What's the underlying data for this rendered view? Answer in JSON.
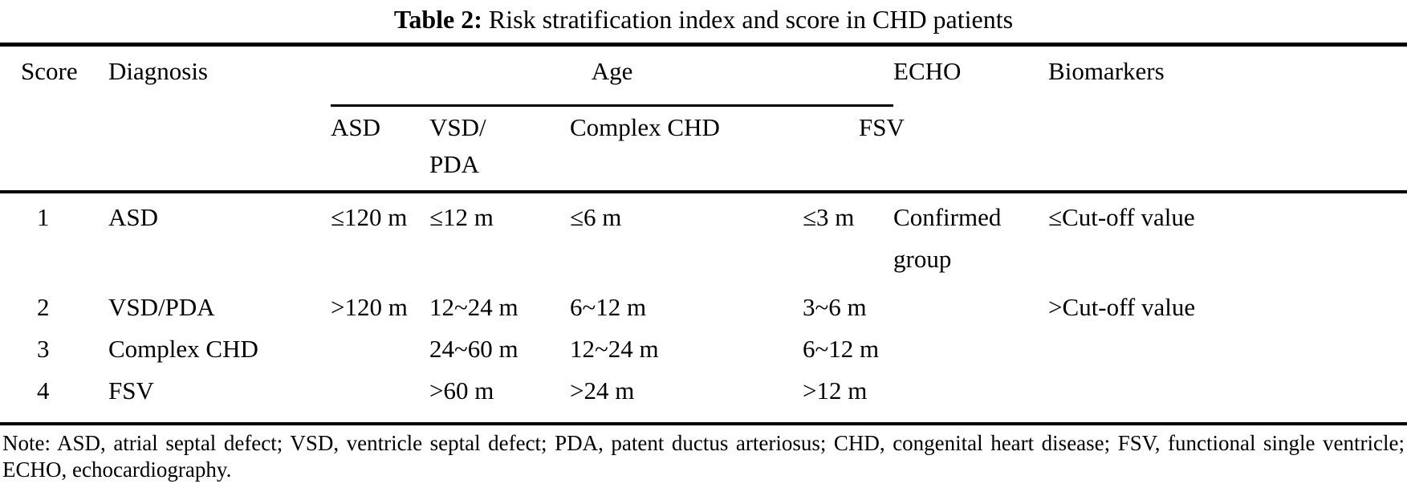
{
  "colors": {
    "text": "#000000",
    "background": "#ffffff",
    "rule": "#000000"
  },
  "caption": {
    "label": "Table 2:",
    "text": " Risk stratification index and score in CHD patients"
  },
  "table": {
    "header": {
      "score": "Score",
      "diagnosis": "Diagnosis",
      "age": "Age",
      "echo": "ECHO",
      "biomarkers": "Biomarkers",
      "age_subcolumns": {
        "asd": "ASD",
        "vsd_pda": "VSD/\nPDA",
        "complex_chd": "Complex CHD",
        "fsv": "FSV"
      }
    },
    "rows": [
      {
        "cells": [
          "1",
          "ASD",
          "≤120 m",
          "≤12 m",
          "≤6 m",
          "≤3 m",
          "Confirmed\ngroup",
          "≤Cut-off value"
        ]
      },
      {
        "cells": [
          "2",
          "VSD/PDA",
          ">120 m",
          "12~24 m",
          "6~12 m",
          "3~6 m",
          "",
          ">Cut-off value"
        ]
      },
      {
        "cells": [
          "3",
          "Complex CHD",
          "",
          "24~60 m",
          "12~24 m",
          "6~12 m",
          "",
          ""
        ]
      },
      {
        "cells": [
          "4",
          "FSV",
          "",
          ">60 m",
          ">24 m",
          ">12 m",
          "",
          ""
        ]
      }
    ]
  },
  "note": "Note: ASD, atrial septal defect; VSD, ventricle septal defect; PDA, patent ductus arteriosus; CHD, congenital heart disease; FSV, functional single ventricle; ECHO, echocardiography."
}
